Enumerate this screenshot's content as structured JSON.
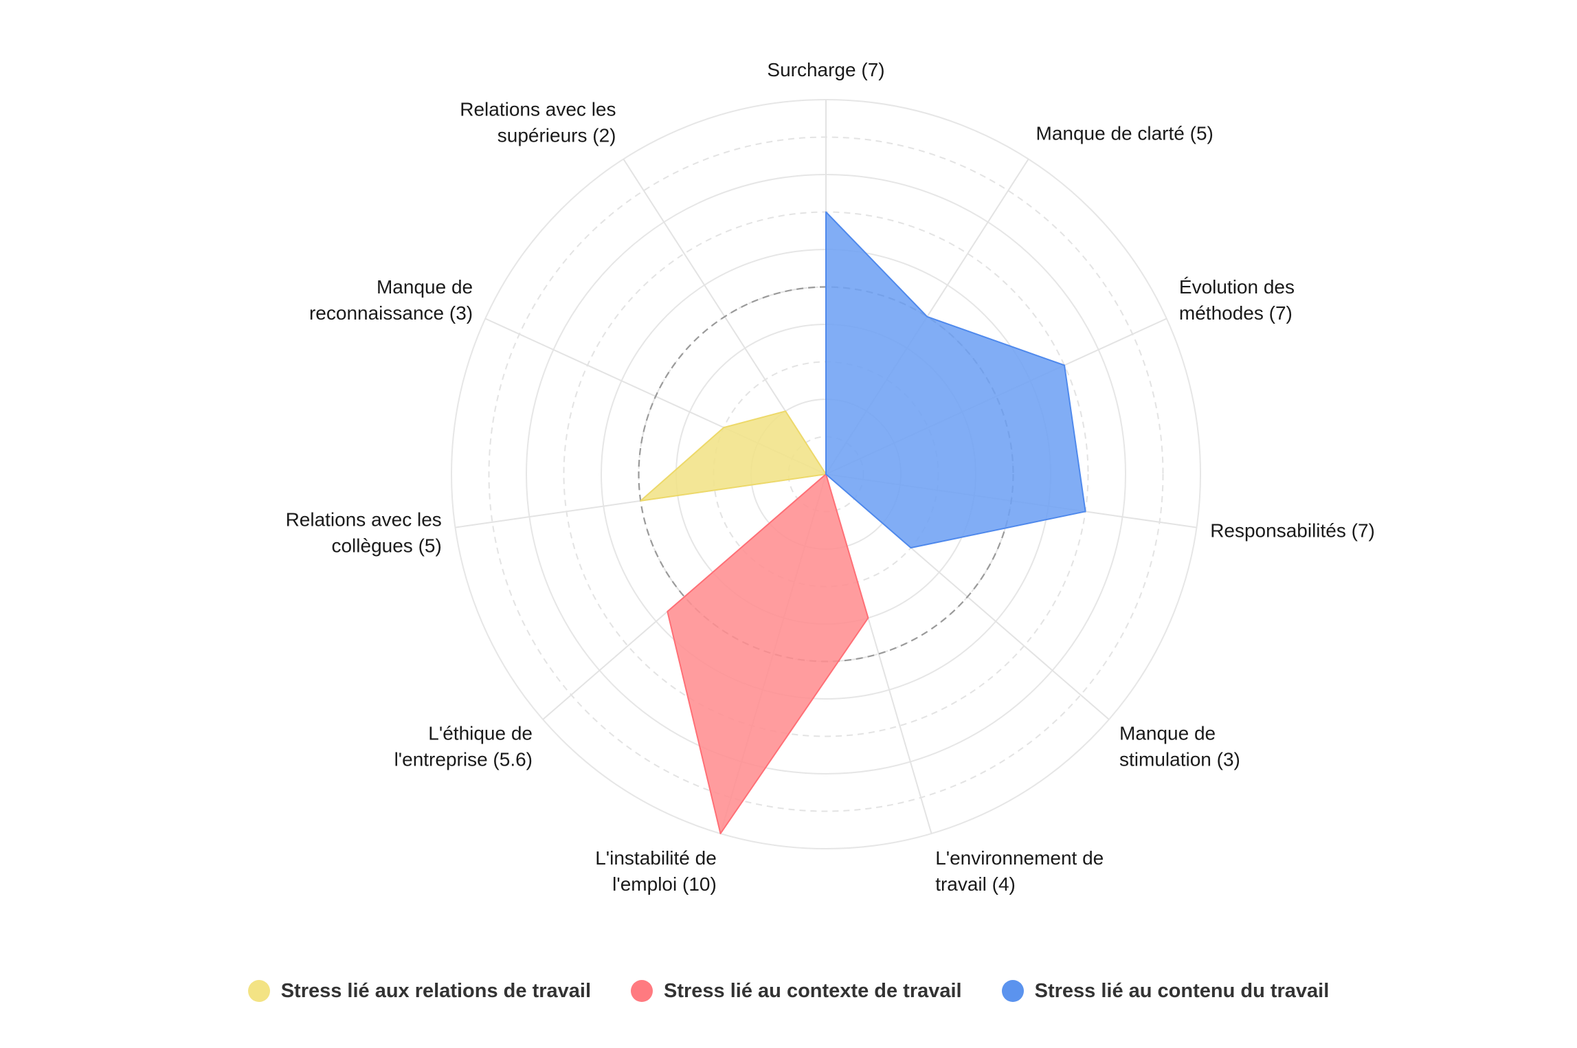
{
  "chart_data": {
    "type": "radar",
    "title": "",
    "r_range": [
      0,
      10
    ],
    "ring_count": 10,
    "reference_ring_value": 5,
    "grid": true,
    "legend_position": "bottom",
    "axes": [
      {
        "name": "Surcharge",
        "value": 7,
        "label": "Surcharge (7)",
        "group": "contenu"
      },
      {
        "name": "Manque de clarté",
        "value": 5,
        "label": "Manque de clarté (5)",
        "group": "contenu"
      },
      {
        "name": "Évolution des méthodes",
        "value": 7,
        "label": "Évolution des méthodes (7)",
        "group": "contenu"
      },
      {
        "name": "Responsabilités",
        "value": 7,
        "label": "Responsabilités (7)",
        "group": "contenu"
      },
      {
        "name": "Manque de stimulation",
        "value": 3,
        "label": "Manque de stimulation (3)",
        "group": "contenu"
      },
      {
        "name": "L'environnement de travail",
        "value": 4,
        "label": "L'environnement de travail (4)",
        "group": "contexte"
      },
      {
        "name": "L'instabilité de l'emploi",
        "value": 10,
        "label": "L'instabilité de l'emploi (10)",
        "group": "contexte"
      },
      {
        "name": "L'éthique de l'entreprise",
        "value": 5.6,
        "label": "L'éthique de l'entreprise (5.6)",
        "group": "contexte"
      },
      {
        "name": "Relations avec les collègues",
        "value": 5,
        "label": "Relations avec les collègues (5)",
        "group": "relations"
      },
      {
        "name": "Manque de reconnaissance",
        "value": 3,
        "label": "Manque de reconnaissance (3)",
        "group": "relations"
      },
      {
        "name": "Relations avec les supérieurs",
        "value": 2,
        "label": "Relations avec les supérieurs (2)",
        "group": "relations"
      }
    ],
    "series": [
      {
        "name": "Stress lié aux relations de travail",
        "key": "relations",
        "color": "#F1E387",
        "legend_color": "#F3E384",
        "stroke": "#EDD96A",
        "axes": [
          "Relations avec les collègues",
          "Manque de reconnaissance",
          "Relations avec les supérieurs"
        ]
      },
      {
        "name": "Stress lié au contexte de travail",
        "key": "contexte",
        "color": "#FF8E91",
        "legend_color": "#FF7A80",
        "stroke": "#FF6F76",
        "axes": [
          "L'environnement de travail",
          "L'instabilité de l'emploi",
          "L'éthique de l'entreprise"
        ]
      },
      {
        "name": "Stress lié au contenu du travail",
        "key": "contenu",
        "color": "#6FA2F4",
        "legend_color": "#5B93EE",
        "stroke": "#4F89EC",
        "axes": [
          "Surcharge",
          "Manque de clarté",
          "Évolution des méthodes",
          "Responsabilités",
          "Manque de stimulation"
        ]
      }
    ]
  }
}
